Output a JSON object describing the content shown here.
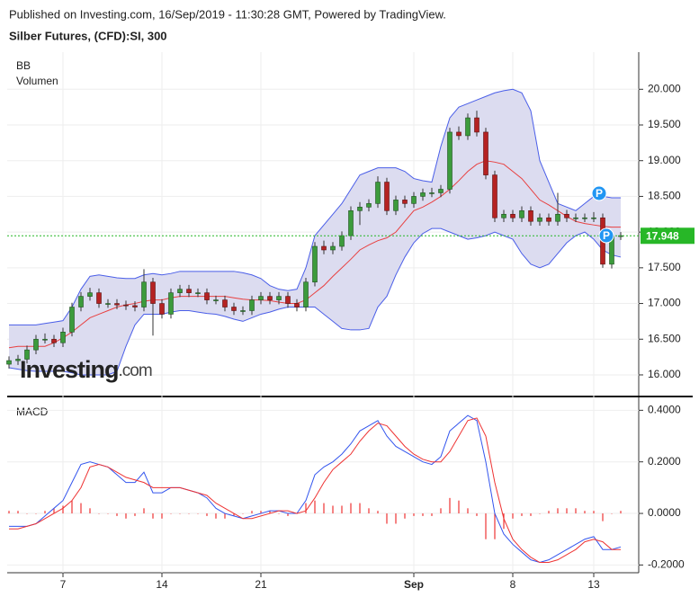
{
  "header": {
    "published": "Published on Investing.com, 16/Sep/2019 - 11:30:28 GMT, Powered by TradingView.",
    "logo": "Investing",
    "logo_suffix": ".com"
  },
  "chart_data": [
    {
      "type": "candlestick",
      "title": "Silber Futures, (CFD):SI, 300",
      "indicator_labels": [
        "BB",
        "Volumen"
      ],
      "open": [
        16.15,
        16.2,
        16.22,
        16.35,
        16.5,
        16.5,
        16.45,
        16.6,
        16.95,
        17.1,
        17.15,
        17.0,
        17.0,
        16.98,
        16.97,
        16.95,
        17.3,
        17.0,
        16.85,
        17.15,
        17.2,
        17.15,
        17.15,
        17.05,
        17.05,
        16.95,
        16.9,
        16.9,
        17.05,
        17.1,
        17.05,
        17.1,
        17.0,
        16.95,
        17.3,
        17.8,
        17.75,
        17.8,
        17.95,
        18.3,
        18.35,
        18.4,
        18.7,
        18.3,
        18.45,
        18.4,
        18.5,
        18.55,
        18.55,
        18.6,
        19.4,
        19.35,
        19.6,
        19.4,
        18.8,
        18.2,
        18.25,
        18.2,
        18.3,
        18.15,
        18.2,
        18.15,
        18.25,
        18.2,
        18.2,
        18.2,
        18.2,
        17.55,
        17.95
      ],
      "high": [
        16.26,
        16.28,
        16.41,
        16.56,
        16.58,
        16.56,
        16.66,
        17.01,
        17.16,
        17.22,
        17.21,
        17.06,
        17.06,
        17.04,
        17.03,
        17.48,
        17.36,
        17.06,
        17.21,
        17.26,
        17.26,
        17.21,
        17.21,
        17.11,
        17.11,
        17.01,
        16.96,
        17.11,
        17.16,
        17.16,
        17.16,
        17.16,
        17.06,
        17.36,
        17.86,
        17.88,
        17.86,
        18.01,
        18.36,
        18.42,
        18.46,
        18.78,
        18.76,
        18.51,
        18.51,
        18.56,
        18.61,
        18.62,
        18.66,
        19.46,
        19.48,
        19.66,
        19.7,
        19.46,
        18.86,
        18.31,
        18.31,
        18.36,
        18.36,
        18.26,
        18.26,
        18.55,
        18.31,
        18.26,
        18.26,
        18.28,
        18.26,
        17.99,
        18.0
      ],
      "low": [
        16.09,
        16.14,
        16.16,
        16.29,
        16.44,
        16.39,
        16.39,
        16.54,
        16.89,
        17.04,
        16.94,
        16.94,
        16.92,
        16.91,
        16.89,
        16.89,
        16.55,
        16.79,
        16.79,
        17.09,
        17.09,
        17.09,
        16.99,
        16.99,
        16.89,
        16.84,
        16.84,
        16.84,
        16.99,
        16.99,
        16.99,
        16.94,
        16.89,
        16.89,
        17.24,
        17.69,
        17.69,
        17.74,
        17.89,
        18.1,
        18.29,
        18.34,
        18.24,
        18.24,
        18.34,
        18.34,
        18.44,
        18.49,
        18.49,
        18.54,
        19.29,
        19.29,
        19.34,
        18.74,
        18.14,
        18.14,
        18.14,
        18.14,
        18.09,
        18.09,
        18.09,
        18.09,
        18.14,
        18.14,
        18.14,
        18.14,
        17.5,
        17.49,
        17.89
      ],
      "close": [
        16.2,
        16.22,
        16.35,
        16.5,
        16.5,
        16.45,
        16.6,
        16.95,
        17.1,
        17.15,
        17.0,
        17.0,
        16.98,
        16.97,
        16.95,
        17.3,
        17.0,
        16.85,
        17.15,
        17.2,
        17.15,
        17.15,
        17.05,
        17.05,
        16.95,
        16.9,
        16.9,
        17.05,
        17.1,
        17.05,
        17.1,
        17.0,
        16.95,
        17.3,
        17.8,
        17.75,
        17.8,
        17.95,
        18.3,
        18.35,
        18.4,
        18.7,
        18.3,
        18.45,
        18.4,
        18.5,
        18.55,
        18.55,
        18.6,
        19.4,
        19.35,
        19.6,
        19.4,
        18.8,
        18.2,
        18.25,
        18.2,
        18.3,
        18.15,
        18.2,
        18.15,
        18.25,
        18.2,
        18.2,
        18.2,
        18.2,
        17.55,
        17.95,
        17.95
      ],
      "up_color": "#3c9b3c",
      "down_color": "#b52222",
      "bands": {
        "line_color": "#4a5ee8",
        "middle_color": "#e84040",
        "fill": "#dcdcf0",
        "upper": [
          16.7,
          16.7,
          16.7,
          16.7,
          16.72,
          16.74,
          16.76,
          16.95,
          17.2,
          17.38,
          17.4,
          17.38,
          17.36,
          17.35,
          17.35,
          17.4,
          17.42,
          17.4,
          17.42,
          17.45,
          17.45,
          17.45,
          17.45,
          17.45,
          17.45,
          17.45,
          17.43,
          17.4,
          17.35,
          17.25,
          17.2,
          17.18,
          17.2,
          17.5,
          17.95,
          18.1,
          18.25,
          18.4,
          18.6,
          18.8,
          18.85,
          18.9,
          18.9,
          18.9,
          18.85,
          18.75,
          18.72,
          18.7,
          19.2,
          19.6,
          19.75,
          19.8,
          19.85,
          19.9,
          19.95,
          19.98,
          20.0,
          19.95,
          19.7,
          19.0,
          18.7,
          18.4,
          18.35,
          18.3,
          18.4,
          18.5,
          18.5,
          18.48,
          18.48
        ],
        "middle": [
          16.38,
          16.4,
          16.4,
          16.4,
          16.4,
          16.45,
          16.52,
          16.6,
          16.7,
          16.8,
          16.85,
          16.9,
          16.95,
          16.98,
          17.0,
          17.03,
          17.05,
          17.05,
          17.08,
          17.1,
          17.1,
          17.1,
          17.1,
          17.1,
          17.1,
          17.08,
          17.06,
          17.05,
          17.05,
          17.04,
          17.02,
          17.0,
          17.0,
          17.05,
          17.15,
          17.25,
          17.38,
          17.5,
          17.62,
          17.75,
          17.82,
          17.88,
          17.92,
          18.0,
          18.15,
          18.3,
          18.35,
          18.42,
          18.5,
          18.6,
          18.72,
          18.85,
          18.95,
          19.0,
          18.98,
          18.95,
          18.85,
          18.75,
          18.6,
          18.45,
          18.38,
          18.3,
          18.22,
          18.15,
          18.12,
          18.1,
          18.08,
          18.07,
          18.07
        ],
        "lower": [
          16.1,
          16.08,
          16.06,
          16.05,
          16.05,
          16.05,
          16.05,
          16.03,
          16.0,
          16.0,
          16.0,
          16.0,
          16.05,
          16.4,
          16.7,
          16.85,
          16.85,
          16.85,
          16.88,
          16.9,
          16.9,
          16.88,
          16.86,
          16.85,
          16.82,
          16.78,
          16.75,
          16.8,
          16.85,
          16.88,
          16.92,
          16.95,
          16.95,
          16.95,
          16.95,
          16.85,
          16.75,
          16.65,
          16.63,
          16.63,
          16.65,
          16.95,
          17.1,
          17.4,
          17.65,
          17.85,
          17.98,
          18.05,
          18.05,
          18.0,
          17.95,
          17.9,
          17.92,
          17.95,
          18.0,
          17.95,
          17.9,
          17.7,
          17.55,
          17.5,
          17.55,
          17.7,
          17.85,
          17.95,
          18.0,
          17.9,
          17.75,
          17.68,
          17.65
        ]
      },
      "last_price": 17.948,
      "last_price_color": "#27b727",
      "markers": [
        "P",
        "P"
      ],
      "marker_color": "#2196f3",
      "ylim": [
        15.71,
        20.52
      ],
      "yticks": [
        {
          "value": 16,
          "label": "16.000"
        },
        {
          "value": 16.5,
          "label": "16.500"
        },
        {
          "value": 17,
          "label": "17.000"
        },
        {
          "value": 17.5,
          "label": "17.500"
        },
        {
          "value": 18,
          "label": "18.000"
        },
        {
          "value": 18.5,
          "label": "18.500"
        },
        {
          "value": 19,
          "label": "19.000"
        },
        {
          "value": 19.5,
          "label": "19.500"
        },
        {
          "value": 20,
          "label": "20.000"
        }
      ],
      "grid": true
    },
    {
      "type": "line",
      "title": "MACD",
      "categories": [
        null,
        null,
        null,
        null,
        null,
        null,
        "7",
        null,
        null,
        null,
        null,
        null,
        null,
        null,
        null,
        null,
        null,
        "14",
        null,
        null,
        null,
        null,
        null,
        null,
        null,
        null,
        null,
        null,
        "21",
        null,
        null,
        null,
        null,
        null,
        null,
        null,
        null,
        null,
        null,
        null,
        null,
        null,
        null,
        null,
        null,
        "Sep",
        null,
        null,
        null,
        null,
        null,
        null,
        null,
        null,
        null,
        null,
        "8",
        null,
        null,
        null,
        null,
        null,
        null,
        null,
        null,
        "13",
        null,
        null,
        null
      ],
      "series": [
        {
          "color": "#3355ee",
          "values": [
            -0.05,
            -0.05,
            -0.05,
            -0.04,
            -0.01,
            0.02,
            0.05,
            0.12,
            0.19,
            0.2,
            0.19,
            0.18,
            0.15,
            0.12,
            0.12,
            0.16,
            0.08,
            0.08,
            0.1,
            0.1,
            0.09,
            0.08,
            0.06,
            0.02,
            0.0,
            -0.01,
            -0.02,
            -0.01,
            0.0,
            0.01,
            0.01,
            0.0,
            0.0,
            0.05,
            0.15,
            0.18,
            0.2,
            0.23,
            0.27,
            0.32,
            0.34,
            0.36,
            0.3,
            0.26,
            0.24,
            0.22,
            0.2,
            0.19,
            0.22,
            0.32,
            0.35,
            0.38,
            0.36,
            0.2,
            0.0,
            -0.08,
            -0.12,
            -0.15,
            -0.18,
            -0.19,
            -0.18,
            -0.16,
            -0.14,
            -0.12,
            -0.1,
            -0.09,
            -0.14,
            -0.14,
            -0.13
          ]
        },
        {
          "color": "#ee3333",
          "values": [
            -0.06,
            -0.06,
            -0.05,
            -0.04,
            -0.02,
            0.0,
            0.02,
            0.05,
            0.1,
            0.18,
            0.19,
            0.18,
            0.16,
            0.14,
            0.13,
            0.12,
            0.1,
            0.1,
            0.1,
            0.1,
            0.09,
            0.08,
            0.07,
            0.04,
            0.02,
            0.0,
            -0.02,
            -0.02,
            -0.01,
            0.0,
            0.01,
            0.01,
            0.0,
            0.01,
            0.06,
            0.12,
            0.17,
            0.2,
            0.23,
            0.28,
            0.32,
            0.35,
            0.34,
            0.3,
            0.26,
            0.23,
            0.21,
            0.2,
            0.2,
            0.24,
            0.3,
            0.36,
            0.37,
            0.3,
            0.12,
            -0.02,
            -0.1,
            -0.14,
            -0.17,
            -0.19,
            -0.19,
            -0.18,
            -0.16,
            -0.14,
            -0.11,
            -0.1,
            -0.11,
            -0.14,
            -0.14
          ]
        }
      ],
      "histogram": {
        "color": "#ee3333",
        "values": [
          0.01,
          0.01,
          0.0,
          0.0,
          0.01,
          0.02,
          0.03,
          0.05,
          0.04,
          0.02,
          0.0,
          0.0,
          -0.01,
          -0.02,
          -0.01,
          0.02,
          -0.02,
          -0.02,
          0.0,
          0.0,
          0.0,
          0.0,
          -0.01,
          -0.02,
          -0.02,
          -0.01,
          0.0,
          0.01,
          0.01,
          0.01,
          0.0,
          -0.01,
          0.0,
          0.04,
          0.05,
          0.04,
          0.03,
          0.03,
          0.04,
          0.04,
          0.02,
          0.01,
          -0.04,
          -0.04,
          -0.02,
          -0.01,
          -0.01,
          -0.01,
          0.02,
          0.06,
          0.05,
          0.02,
          -0.01,
          -0.1,
          -0.1,
          -0.06,
          -0.02,
          -0.01,
          -0.01,
          0.0,
          0.01,
          0.02,
          0.02,
          0.02,
          0.01,
          0.01,
          -0.03,
          0.0,
          0.01
        ]
      },
      "ylim": [
        -0.23,
        0.45
      ],
      "yticks": [
        {
          "value": 0.4,
          "label": "0.4000"
        },
        {
          "value": 0.2,
          "label": "0.2000"
        },
        {
          "value": 0,
          "label": "0.0000"
        },
        {
          "value": -0.2,
          "label": "-0.2000"
        }
      ],
      "grid": true
    }
  ]
}
